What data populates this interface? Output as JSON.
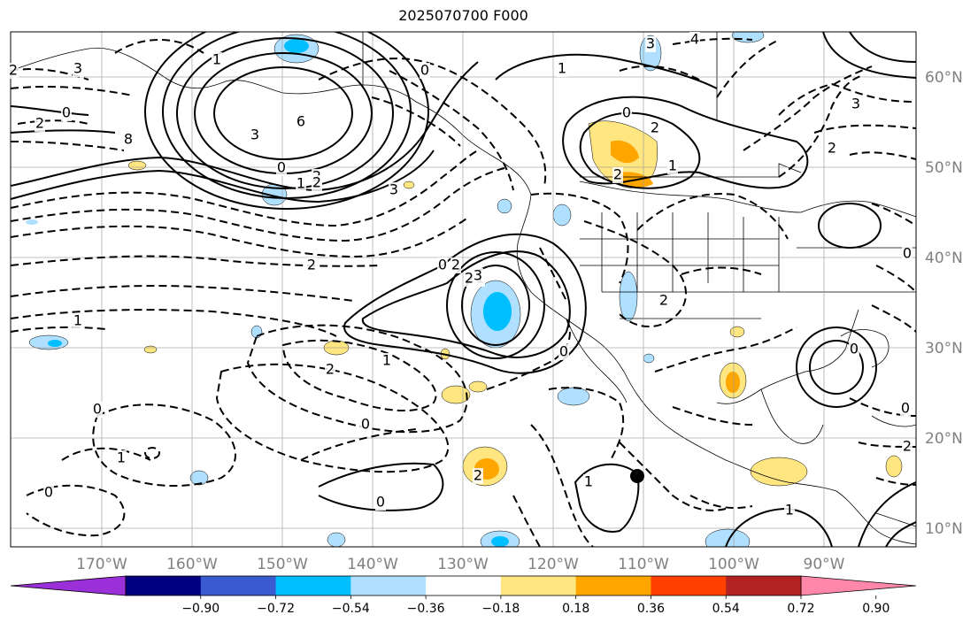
{
  "title": "2025070700 F000",
  "map": {
    "lon_ticks": [
      "170°W",
      "160°W",
      "150°W",
      "140°W",
      "130°W",
      "120°W",
      "110°W",
      "100°W",
      "90°W"
    ],
    "lat_ticks": [
      "60°N",
      "50°N",
      "40°N",
      "30°N",
      "20°N",
      "10°N"
    ],
    "grid": true,
    "contour_labels": [
      "3",
      "2",
      "0",
      "2",
      "1",
      "8",
      "6",
      "3",
      "0",
      "1",
      "2",
      "3",
      "2",
      "2",
      "1",
      "0",
      "1",
      "2",
      "0",
      "1",
      "4",
      "3",
      "2",
      "0",
      "1",
      "2",
      "2",
      "3",
      "2",
      "1",
      "2",
      "0",
      "0",
      "1",
      "2",
      "1",
      "0",
      "0",
      "0",
      "0",
      "1",
      "2",
      "3",
      "0",
      "2",
      "0"
    ],
    "marker": "black-dot"
  },
  "colorbar": {
    "ticks": [
      "−0.90",
      "−0.72",
      "−0.54",
      "−0.36",
      "−0.18",
      "0.18",
      "0.36",
      "0.54",
      "0.72",
      "0.90"
    ],
    "colors": [
      "#9b30d9",
      "#000080",
      "#3a5bcf",
      "#00bfff",
      "#b0e0ff",
      "#ffffff",
      "#ffe680",
      "#ffa500",
      "#ff4000",
      "#b22222",
      "#ff88aa"
    ],
    "under_color": "#9b30d9",
    "over_color": "#ff88aa"
  }
}
